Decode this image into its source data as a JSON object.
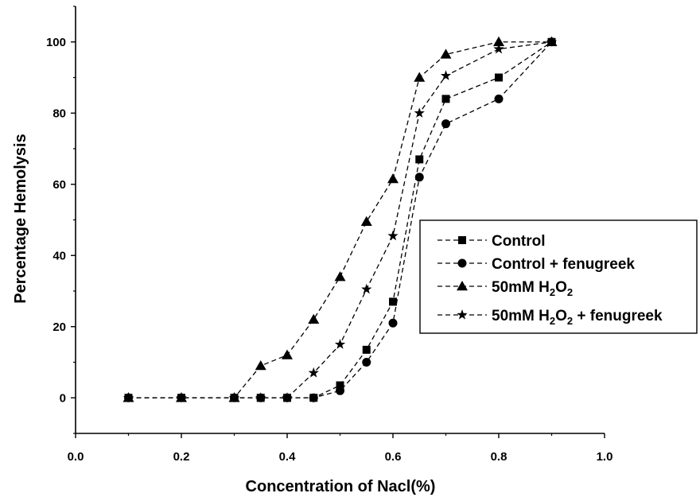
{
  "chart_data": {
    "type": "line",
    "title": "",
    "xlabel": "Concentration of Nacl(%)",
    "ylabel": "Percentage Hemolysis",
    "xlim": [
      0.0,
      1.0
    ],
    "ylim": [
      -10,
      110
    ],
    "xticks": [
      0.0,
      0.2,
      0.4,
      0.6,
      0.8,
      1.0
    ],
    "xtick_labels": [
      "0.0",
      "0.2",
      "0.4",
      "0.6",
      "0.8",
      "1.0"
    ],
    "yticks": [
      0,
      20,
      40,
      60,
      80,
      100
    ],
    "ytick_labels": [
      "0",
      "20",
      "40",
      "60",
      "80",
      "100"
    ],
    "grid": false,
    "legend_position": "right",
    "line_style": "dashed",
    "series": [
      {
        "name": "Control",
        "marker": "square",
        "x": [
          0.1,
          0.2,
          0.3,
          0.35,
          0.4,
          0.45,
          0.5,
          0.55,
          0.6,
          0.65,
          0.7,
          0.8,
          0.9
        ],
        "y": [
          0,
          0,
          0,
          0,
          0,
          0,
          3.5,
          13.5,
          27,
          67,
          84,
          90,
          100
        ]
      },
      {
        "name": "Control + fenugreek",
        "marker": "circle",
        "x": [
          0.1,
          0.2,
          0.3,
          0.35,
          0.4,
          0.45,
          0.5,
          0.55,
          0.6,
          0.65,
          0.7,
          0.8,
          0.9
        ],
        "y": [
          0,
          0,
          0,
          0,
          0,
          0,
          2,
          10,
          21,
          62,
          77,
          84,
          100
        ]
      },
      {
        "name": "50mM H2O2",
        "name_parts": [
          "50mM H",
          "2",
          "O",
          "2",
          ""
        ],
        "marker": "triangle",
        "x": [
          0.1,
          0.2,
          0.3,
          0.35,
          0.4,
          0.45,
          0.5,
          0.55,
          0.6,
          0.65,
          0.7,
          0.8,
          0.9
        ],
        "y": [
          0,
          0,
          0,
          9,
          12,
          22,
          34,
          49.5,
          61.5,
          90,
          96.5,
          100,
          100
        ]
      },
      {
        "name": "50mM H2O2 + fenugreek",
        "name_parts": [
          "50mM H",
          "2",
          "O",
          "2",
          " + fenugreek"
        ],
        "marker": "star",
        "x": [
          0.1,
          0.2,
          0.3,
          0.35,
          0.4,
          0.45,
          0.5,
          0.55,
          0.6,
          0.65,
          0.7,
          0.8,
          0.9
        ],
        "y": [
          0,
          0,
          0,
          0,
          0,
          7,
          15,
          30.5,
          45.5,
          80,
          90.5,
          98,
          100
        ]
      }
    ]
  }
}
